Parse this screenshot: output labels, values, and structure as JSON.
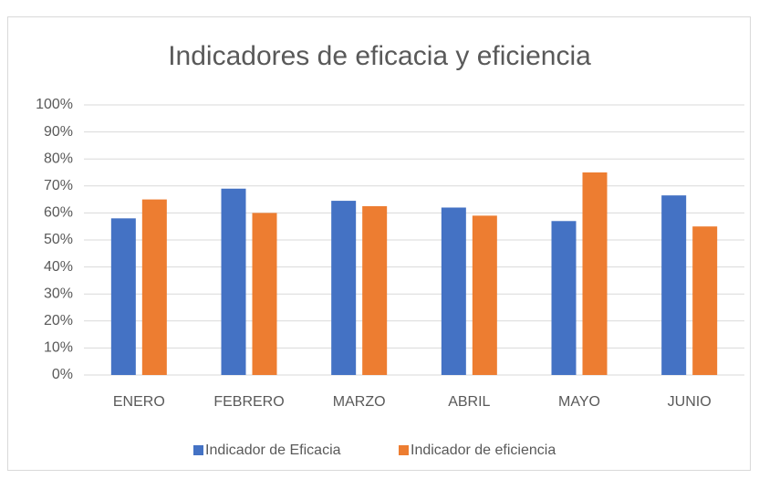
{
  "chart_data": {
    "type": "bar",
    "title": "Indicadores de eficacia y eficiencia",
    "categories": [
      "ENERO",
      "FEBRERO",
      "MARZO",
      "ABRIL",
      "MAYO",
      "JUNIO"
    ],
    "series": [
      {
        "name": "Indicador de Eficacia",
        "color": "#4472c4",
        "values": [
          58,
          69,
          64.5,
          62,
          57,
          66.5
        ]
      },
      {
        "name": "Indicador de eficiencia",
        "color": "#ed7d31",
        "values": [
          65,
          60,
          62.5,
          59,
          75,
          55
        ]
      }
    ],
    "ylim": [
      0,
      100
    ],
    "yticks": [
      {
        "value": 0,
        "label": "0%"
      },
      {
        "value": 10,
        "label": "10%"
      },
      {
        "value": 20,
        "label": "20%"
      },
      {
        "value": 30,
        "label": "30%"
      },
      {
        "value": 40,
        "label": "40%"
      },
      {
        "value": 50,
        "label": "50%"
      },
      {
        "value": 60,
        "label": "60%"
      },
      {
        "value": 70,
        "label": "70%"
      },
      {
        "value": 80,
        "label": "80%"
      },
      {
        "value": 90,
        "label": "90%"
      },
      {
        "value": 100,
        "label": "100%"
      }
    ],
    "grid": true,
    "legend": "bottom"
  }
}
